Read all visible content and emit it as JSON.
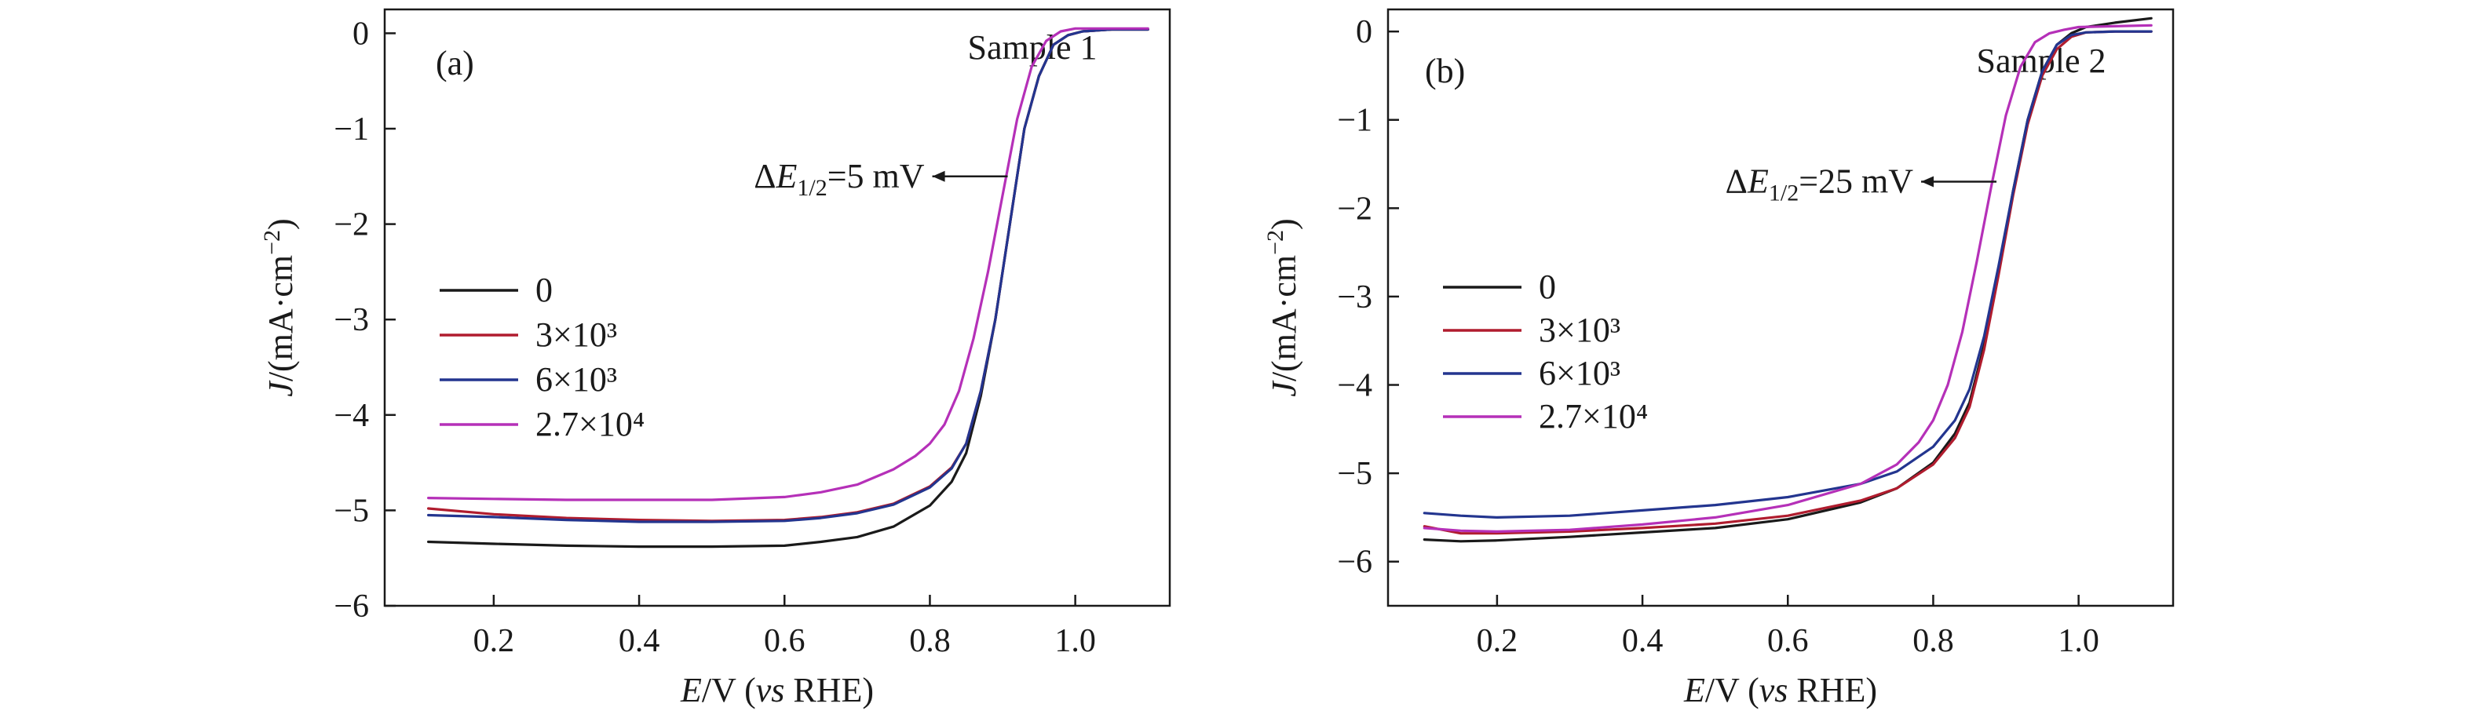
{
  "chart_data": [
    {
      "type": "line",
      "panel_label": "(a)",
      "title": "Sample 1",
      "xlabel": {
        "italic": "E",
        "mid": "/V (",
        "italic2": "vs",
        "tail": " RHE)"
      },
      "ylabel": {
        "italic": "J",
        "tail": "/(mA·cm",
        "sup": "−2",
        "close": ")"
      },
      "xlim": [
        0.05,
        1.13
      ],
      "ylim": [
        -6,
        0.25
      ],
      "xticks": [
        0.2,
        0.4,
        0.6,
        0.8,
        1.0
      ],
      "xtick_labels": [
        "0.2",
        "0.4",
        "0.6",
        "0.8",
        "1.0"
      ],
      "yticks": [
        0,
        -1,
        -2,
        -3,
        -4,
        -5,
        -6
      ],
      "ytick_labels": [
        "0",
        "−1",
        "−2",
        "−3",
        "−4",
        "−5",
        "−6"
      ],
      "annotation": {
        "prefix": "ΔE",
        "sub": "1/2",
        "suffix": "=5 mV",
        "x": 0.92,
        "y": -1.5
      },
      "legend_position": "center-left",
      "series": [
        {
          "name": "0",
          "color": "#1a1a1a",
          "x": [
            0.11,
            0.2,
            0.3,
            0.4,
            0.5,
            0.6,
            0.65,
            0.7,
            0.75,
            0.8,
            0.83,
            0.85,
            0.87,
            0.89,
            0.91,
            0.93,
            0.95,
            0.97,
            0.99,
            1.01,
            1.05,
            1.1
          ],
          "y": [
            -5.33,
            -5.35,
            -5.37,
            -5.38,
            -5.38,
            -5.37,
            -5.33,
            -5.28,
            -5.17,
            -4.95,
            -4.7,
            -4.4,
            -3.8,
            -3.0,
            -2.0,
            -1.0,
            -0.45,
            -0.12,
            -0.02,
            0.02,
            0.04,
            0.04
          ]
        },
        {
          "name": "3×10³",
          "color": "#b01c2e",
          "x": [
            0.11,
            0.2,
            0.3,
            0.4,
            0.5,
            0.6,
            0.65,
            0.7,
            0.75,
            0.8,
            0.83,
            0.85,
            0.87,
            0.89,
            0.91,
            0.93,
            0.95,
            0.97,
            0.99,
            1.01,
            1.05,
            1.1
          ],
          "y": [
            -4.98,
            -5.04,
            -5.08,
            -5.1,
            -5.11,
            -5.1,
            -5.07,
            -5.02,
            -4.93,
            -4.75,
            -4.55,
            -4.3,
            -3.75,
            -3.0,
            -2.0,
            -1.0,
            -0.45,
            -0.12,
            -0.02,
            0.02,
            0.04,
            0.04
          ]
        },
        {
          "name": "6×10³",
          "color": "#23358f",
          "x": [
            0.11,
            0.2,
            0.3,
            0.4,
            0.5,
            0.6,
            0.65,
            0.7,
            0.75,
            0.8,
            0.83,
            0.85,
            0.87,
            0.89,
            0.91,
            0.93,
            0.95,
            0.97,
            0.99,
            1.01,
            1.05,
            1.1
          ],
          "y": [
            -5.05,
            -5.07,
            -5.1,
            -5.12,
            -5.12,
            -5.11,
            -5.08,
            -5.03,
            -4.94,
            -4.76,
            -4.56,
            -4.3,
            -3.75,
            -3.0,
            -2.0,
            -1.0,
            -0.45,
            -0.12,
            -0.02,
            0.02,
            0.04,
            0.04
          ]
        },
        {
          "name": "2.7×10⁴",
          "color": "#b530b8",
          "x": [
            0.11,
            0.2,
            0.3,
            0.4,
            0.5,
            0.6,
            0.65,
            0.7,
            0.75,
            0.78,
            0.8,
            0.82,
            0.84,
            0.86,
            0.88,
            0.9,
            0.92,
            0.94,
            0.96,
            0.98,
            1.0,
            1.05,
            1.1
          ],
          "y": [
            -4.87,
            -4.88,
            -4.89,
            -4.89,
            -4.89,
            -4.86,
            -4.81,
            -4.73,
            -4.57,
            -4.43,
            -4.3,
            -4.1,
            -3.75,
            -3.2,
            -2.5,
            -1.7,
            -0.9,
            -0.35,
            -0.08,
            0.02,
            0.05,
            0.05,
            0.05
          ]
        }
      ]
    },
    {
      "type": "line",
      "panel_label": "(b)",
      "title": "Sample 2",
      "xlabel": {
        "italic": "E",
        "mid": "/V (",
        "italic2": "vs",
        "tail": " RHE)"
      },
      "ylabel": {
        "italic": "J",
        "tail": "/(mA·cm",
        "sup": "−2",
        "close": ")"
      },
      "xlim": [
        0.05,
        1.13
      ],
      "ylim": [
        -6.5,
        0.25
      ],
      "xticks": [
        0.2,
        0.4,
        0.6,
        0.8,
        1.0
      ],
      "xtick_labels": [
        "0.2",
        "0.4",
        "0.6",
        "0.8",
        "1.0"
      ],
      "yticks": [
        0,
        -1,
        -2,
        -3,
        -4,
        -5,
        -6
      ],
      "ytick_labels": [
        "0",
        "−1",
        "−2",
        "−3",
        "−4",
        "−5",
        "−6"
      ],
      "annotation": {
        "prefix": "ΔE",
        "sub": "1/2",
        "suffix": "=25 mV",
        "x": 0.9,
        "y": -1.7
      },
      "legend_position": "center-left",
      "series": [
        {
          "name": "0",
          "color": "#1a1a1a",
          "x": [
            0.1,
            0.15,
            0.2,
            0.3,
            0.4,
            0.5,
            0.6,
            0.7,
            0.75,
            0.8,
            0.83,
            0.85,
            0.87,
            0.89,
            0.91,
            0.93,
            0.95,
            0.97,
            0.99,
            1.01,
            1.05,
            1.1
          ],
          "y": [
            -5.75,
            -5.77,
            -5.76,
            -5.72,
            -5.67,
            -5.62,
            -5.52,
            -5.33,
            -5.17,
            -4.88,
            -4.55,
            -4.2,
            -3.55,
            -2.7,
            -1.8,
            -1.0,
            -0.45,
            -0.15,
            -0.02,
            0.05,
            0.1,
            0.15
          ]
        },
        {
          "name": "3×10³",
          "color": "#b01c2e",
          "x": [
            0.1,
            0.15,
            0.2,
            0.3,
            0.4,
            0.5,
            0.6,
            0.7,
            0.75,
            0.8,
            0.83,
            0.85,
            0.87,
            0.89,
            0.91,
            0.93,
            0.95,
            0.97,
            0.99,
            1.01,
            1.05,
            1.1
          ],
          "y": [
            -5.6,
            -5.68,
            -5.68,
            -5.66,
            -5.62,
            -5.57,
            -5.48,
            -5.31,
            -5.17,
            -4.9,
            -4.6,
            -4.25,
            -3.6,
            -2.75,
            -1.85,
            -1.05,
            -0.5,
            -0.2,
            -0.06,
            -0.01,
            0.0,
            0.0
          ]
        },
        {
          "name": "6×10³",
          "color": "#23358f",
          "x": [
            0.1,
            0.15,
            0.2,
            0.3,
            0.4,
            0.5,
            0.6,
            0.7,
            0.75,
            0.8,
            0.83,
            0.85,
            0.87,
            0.89,
            0.91,
            0.93,
            0.95,
            0.97,
            0.99,
            1.01,
            1.05,
            1.1
          ],
          "y": [
            -5.45,
            -5.48,
            -5.5,
            -5.48,
            -5.42,
            -5.36,
            -5.27,
            -5.12,
            -4.98,
            -4.7,
            -4.4,
            -4.05,
            -3.45,
            -2.65,
            -1.8,
            -1.0,
            -0.45,
            -0.15,
            -0.04,
            -0.01,
            0.0,
            0.0
          ]
        },
        {
          "name": "2.7×10⁴",
          "color": "#b530b8",
          "x": [
            0.1,
            0.15,
            0.2,
            0.3,
            0.4,
            0.5,
            0.6,
            0.7,
            0.75,
            0.78,
            0.8,
            0.82,
            0.84,
            0.86,
            0.88,
            0.9,
            0.92,
            0.94,
            0.96,
            0.98,
            1.0,
            1.05,
            1.1
          ],
          "y": [
            -5.62,
            -5.65,
            -5.66,
            -5.64,
            -5.58,
            -5.5,
            -5.36,
            -5.12,
            -4.9,
            -4.65,
            -4.4,
            -4.0,
            -3.4,
            -2.6,
            -1.75,
            -0.95,
            -0.4,
            -0.12,
            -0.02,
            0.02,
            0.05,
            0.06,
            0.07
          ]
        }
      ]
    }
  ]
}
